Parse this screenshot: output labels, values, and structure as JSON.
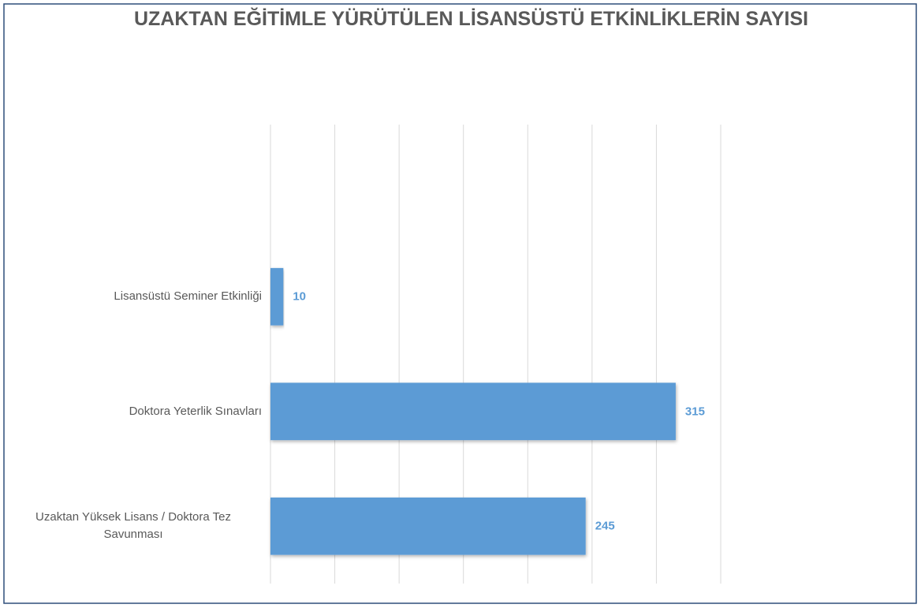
{
  "chart_data": {
    "type": "bar",
    "orientation": "horizontal",
    "title": "UZAKTAN EĞİTİMLE YÜRÜTÜLEN LİSANSÜSTÜ ETKİNLİKLERİN SAYISI",
    "categories": [
      null,
      "Lisansüstü Seminer Etkinliği",
      "Doktora Yeterlik Sınavları",
      "Uzaktan Yüksek Lisans / Doktora Tez Savunması"
    ],
    "values": [
      null,
      10,
      315,
      245
    ],
    "color": "#5b9bd5",
    "xlim": [
      0,
      350
    ],
    "xticks": [
      0,
      50,
      100,
      150,
      200,
      250,
      300,
      350
    ],
    "grid": true
  }
}
